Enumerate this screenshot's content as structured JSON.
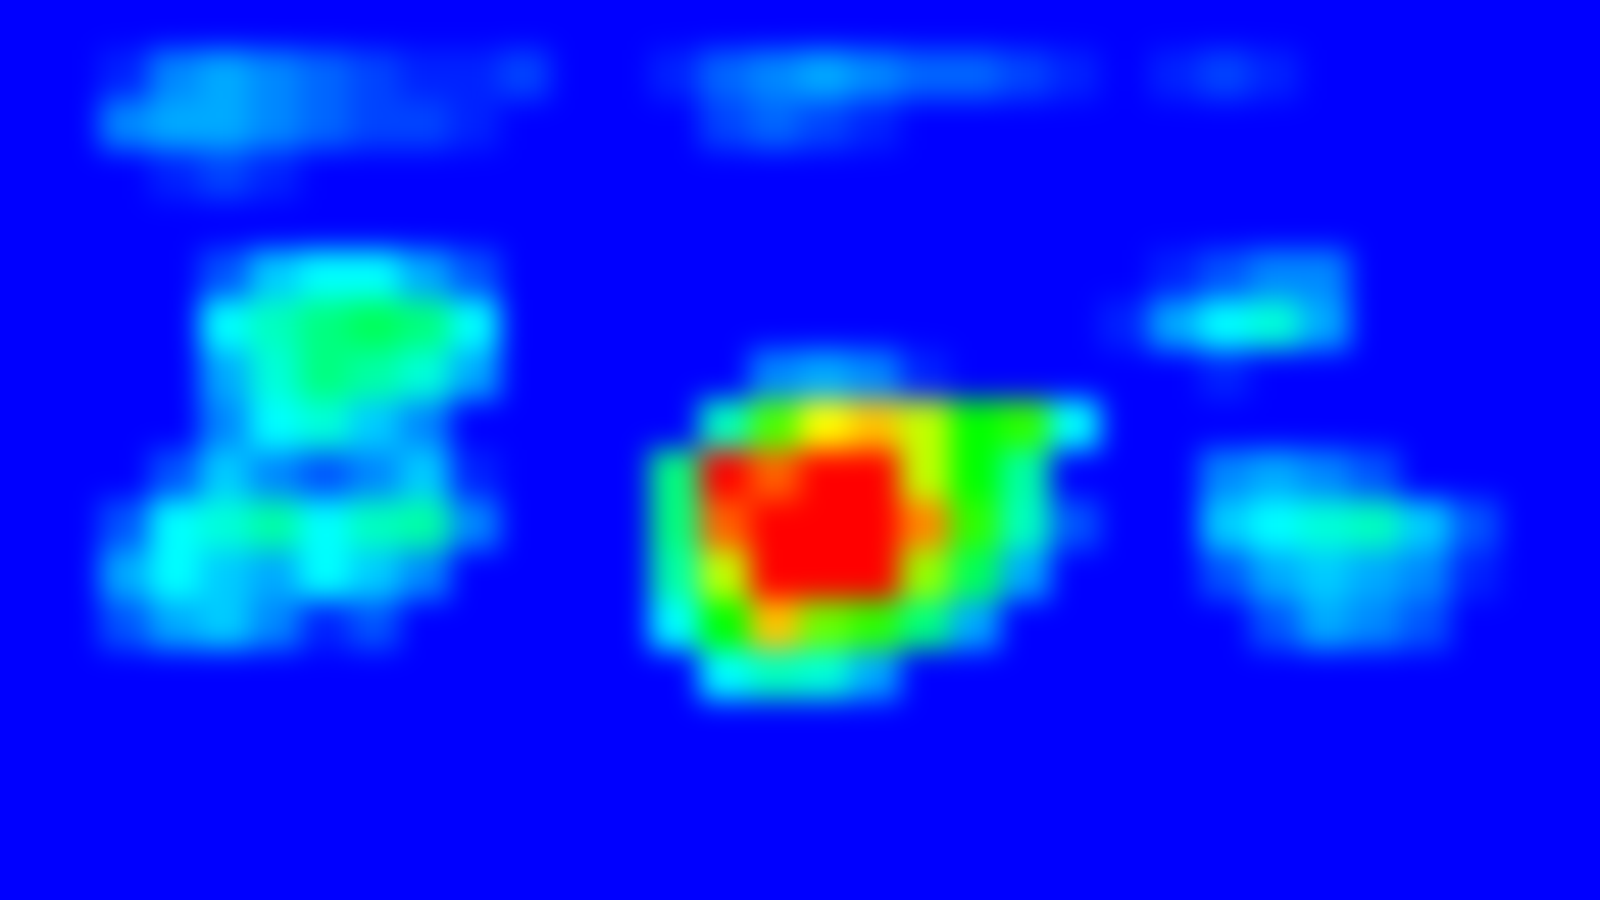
{
  "chart_data": {
    "type": "heatmap",
    "tick_labels": false,
    "color_range": [
      0,
      100
    ],
    "cells": [
      [
        0,
        0,
        5,
        8,
        8,
        8,
        5,
        5,
        5,
        5,
        5,
        5,
        5,
        5,
        8,
        8,
        8,
        8,
        8,
        5,
        5,
        5,
        5,
        5,
        5,
        5,
        5,
        5,
        0,
        0,
        0,
        0
      ],
      [
        0,
        5,
        22,
        28,
        30,
        28,
        26,
        24,
        22,
        22,
        24,
        20,
        18,
        22,
        26,
        28,
        30,
        28,
        26,
        26,
        24,
        22,
        20,
        22,
        24,
        22,
        20,
        18,
        15,
        5,
        0,
        0
      ],
      [
        0,
        10,
        28,
        30,
        30,
        28,
        26,
        24,
        24,
        22,
        20,
        18,
        15,
        20,
        24,
        26,
        24,
        22,
        20,
        18,
        16,
        15,
        15,
        14,
        15,
        14,
        12,
        10,
        8,
        3,
        0,
        0
      ],
      [
        0,
        5,
        18,
        22,
        24,
        22,
        18,
        14,
        12,
        10,
        8,
        8,
        8,
        10,
        12,
        10,
        10,
        8,
        8,
        6,
        6,
        5,
        5,
        5,
        5,
        5,
        5,
        3,
        0,
        0,
        0,
        0
      ],
      [
        0,
        0,
        5,
        8,
        15,
        18,
        20,
        16,
        12,
        8,
        5,
        5,
        5,
        5,
        8,
        8,
        8,
        5,
        5,
        5,
        5,
        5,
        5,
        8,
        8,
        5,
        5,
        0,
        0,
        0,
        0,
        0
      ],
      [
        0,
        0,
        5,
        10,
        25,
        32,
        35,
        35,
        30,
        25,
        10,
        8,
        5,
        5,
        8,
        10,
        12,
        8,
        8,
        5,
        5,
        5,
        15,
        22,
        25,
        28,
        28,
        18,
        5,
        0,
        0,
        0
      ],
      [
        0,
        0,
        5,
        15,
        35,
        40,
        45,
        48,
        45,
        35,
        15,
        10,
        8,
        8,
        10,
        15,
        20,
        18,
        12,
        8,
        5,
        8,
        22,
        30,
        35,
        38,
        30,
        20,
        5,
        0,
        0,
        0
      ],
      [
        0,
        0,
        8,
        15,
        30,
        38,
        45,
        42,
        38,
        30,
        15,
        10,
        8,
        12,
        20,
        28,
        30,
        28,
        22,
        15,
        8,
        5,
        10,
        18,
        22,
        18,
        12,
        8,
        3,
        0,
        0,
        0
      ],
      [
        0,
        3,
        10,
        18,
        28,
        35,
        38,
        32,
        28,
        20,
        12,
        10,
        15,
        20,
        40,
        60,
        72,
        75,
        68,
        55,
        58,
        35,
        12,
        8,
        10,
        12,
        10,
        8,
        3,
        0,
        0,
        0
      ],
      [
        0,
        5,
        15,
        25,
        32,
        28,
        25,
        28,
        32,
        22,
        12,
        10,
        18,
        45,
        85,
        80,
        92,
        92,
        68,
        55,
        42,
        15,
        10,
        18,
        28,
        30,
        28,
        25,
        15,
        5,
        0,
        0
      ],
      [
        0,
        8,
        25,
        35,
        38,
        42,
        35,
        40,
        42,
        28,
        15,
        12,
        20,
        45,
        80,
        95,
        96,
        94,
        78,
        58,
        40,
        25,
        12,
        15,
        32,
        35,
        38,
        40,
        32,
        25,
        8,
        0
      ],
      [
        0,
        10,
        30,
        35,
        32,
        30,
        35,
        32,
        28,
        20,
        12,
        10,
        15,
        42,
        68,
        88,
        95,
        85,
        65,
        48,
        30,
        18,
        10,
        12,
        25,
        30,
        32,
        30,
        28,
        22,
        5,
        0
      ],
      [
        0,
        15,
        25,
        30,
        32,
        28,
        22,
        25,
        20,
        15,
        10,
        8,
        12,
        35,
        55,
        75,
        62,
        58,
        45,
        30,
        18,
        10,
        8,
        10,
        20,
        25,
        30,
        28,
        25,
        15,
        5,
        0
      ],
      [
        0,
        5,
        10,
        15,
        12,
        10,
        8,
        10,
        8,
        5,
        5,
        5,
        8,
        20,
        35,
        40,
        38,
        30,
        18,
        10,
        8,
        5,
        5,
        5,
        10,
        15,
        18,
        20,
        18,
        8,
        0,
        0
      ],
      [
        0,
        8,
        5,
        8,
        5,
        5,
        5,
        5,
        5,
        5,
        5,
        5,
        5,
        8,
        12,
        15,
        12,
        10,
        8,
        5,
        5,
        5,
        5,
        5,
        5,
        8,
        10,
        5,
        5,
        3,
        0,
        0
      ],
      [
        0,
        0,
        3,
        5,
        3,
        3,
        3,
        5,
        5,
        5,
        5,
        5,
        5,
        5,
        5,
        5,
        5,
        5,
        5,
        5,
        5,
        5,
        5,
        8,
        5,
        5,
        5,
        5,
        3,
        0,
        0,
        0
      ],
      [
        0,
        0,
        0,
        3,
        3,
        3,
        3,
        3,
        3,
        5,
        5,
        5,
        5,
        5,
        5,
        5,
        5,
        5,
        5,
        5,
        5,
        5,
        5,
        8,
        5,
        5,
        3,
        3,
        0,
        0,
        0,
        0
      ],
      [
        0,
        0,
        0,
        0,
        0,
        0,
        0,
        0,
        3,
        3,
        5,
        3,
        3,
        3,
        3,
        5,
        5,
        3,
        3,
        3,
        3,
        3,
        3,
        8,
        5,
        3,
        0,
        0,
        0,
        0,
        0,
        0
      ]
    ]
  }
}
